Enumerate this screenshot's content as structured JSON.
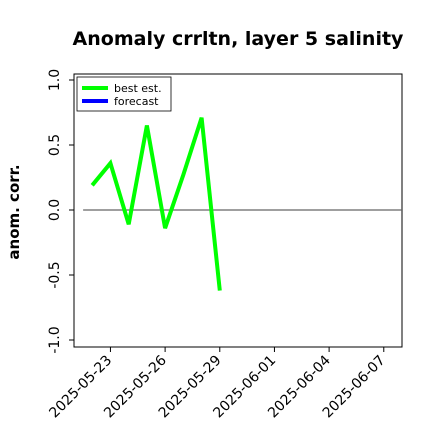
{
  "chart_data": {
    "type": "line",
    "title": "Anomaly crrltn, layer 5 salinity",
    "xlabel": "",
    "ylabel": "anom. corr.",
    "ylim": [
      -1.0,
      1.0
    ],
    "yticks": [
      "-1.0",
      "-0.5",
      "0.0",
      "0.5",
      "1.0"
    ],
    "ytick_values": [
      -1.0,
      -0.5,
      0.0,
      0.5,
      1.0
    ],
    "xlim": [
      "2025-05-21",
      "2025-06-08"
    ],
    "xticks": [
      "2025-05-23",
      "2025-05-26",
      "2025-05-29",
      "2025-06-01",
      "2025-06-04",
      "2025-06-07"
    ],
    "highlighted_xtick": "2025-05-29",
    "highlight_color": "#008000",
    "reference_line": {
      "y": 0.0,
      "x_start": "2025-05-21 12:00",
      "x_end": "2025-06-08",
      "color": "#666666"
    },
    "legend_position": "upper-left",
    "grid": false,
    "series": [
      {
        "name": "best est.",
        "color": "#00ff00",
        "x": [
          "2025-05-22",
          "2025-05-23",
          "2025-05-24",
          "2025-05-25",
          "2025-05-26",
          "2025-05-27",
          "2025-05-28",
          "2025-05-29"
        ],
        "values": [
          0.19,
          0.36,
          -0.11,
          0.65,
          -0.14,
          0.27,
          0.71,
          -0.62
        ]
      },
      {
        "name": "forecast",
        "color": "#0000ff",
        "x": [],
        "values": []
      }
    ]
  }
}
